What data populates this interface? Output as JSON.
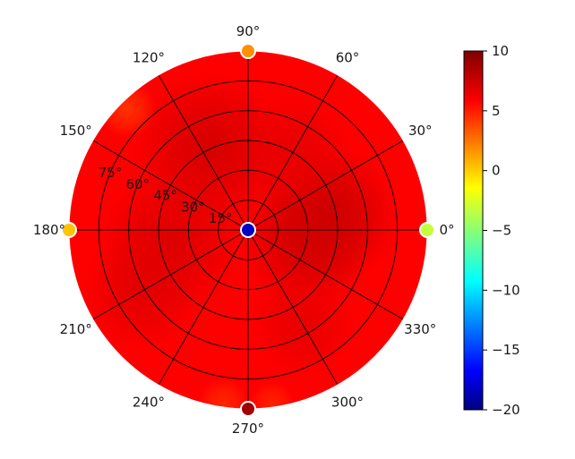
{
  "chart_data": {
    "type": "heatmap",
    "projection": "polar",
    "title": "",
    "theta_ticks": [
      {
        "deg": 0,
        "label": "0°"
      },
      {
        "deg": 30,
        "label": "30°"
      },
      {
        "deg": 60,
        "label": "60°"
      },
      {
        "deg": 90,
        "label": "90°"
      },
      {
        "deg": 120,
        "label": "120°"
      },
      {
        "deg": 150,
        "label": "150°"
      },
      {
        "deg": 180,
        "label": "180°"
      },
      {
        "deg": 210,
        "label": "210°"
      },
      {
        "deg": 240,
        "label": "240°"
      },
      {
        "deg": 270,
        "label": "270°"
      },
      {
        "deg": 300,
        "label": "300°"
      },
      {
        "deg": 330,
        "label": "330°"
      }
    ],
    "radial_ticks": [
      {
        "value": 15,
        "label": "15°"
      },
      {
        "value": 30,
        "label": "30°"
      },
      {
        "value": 45,
        "label": "45°"
      },
      {
        "value": 60,
        "label": "60°"
      },
      {
        "value": 75,
        "label": "75°"
      }
    ],
    "radial_range": [
      0,
      90
    ],
    "radial_label_angle_deg": 157.5,
    "grid": true,
    "colormap": "jet",
    "color_range": [
      -20,
      10
    ],
    "colorbar_ticks": [
      {
        "value": 10,
        "label": "10"
      },
      {
        "value": 5,
        "label": "5"
      },
      {
        "value": 0,
        "label": "0"
      },
      {
        "value": -5,
        "label": "−5"
      },
      {
        "value": -10,
        "label": "−10"
      },
      {
        "value": -15,
        "label": "−15"
      },
      {
        "value": -20,
        "label": "−20"
      }
    ],
    "background_level": 6.3,
    "field_hotspots": [
      {
        "theta": 10,
        "r": 40,
        "value": 8.0,
        "spread": 22
      },
      {
        "theta": 345,
        "r": 30,
        "value": 7.6,
        "spread": 20
      },
      {
        "theta": 115,
        "r": 45,
        "value": 7.6,
        "spread": 24
      },
      {
        "theta": 190,
        "r": 40,
        "value": 7.4,
        "spread": 22
      },
      {
        "theta": 210,
        "r": 62,
        "value": 7.2,
        "spread": 18
      },
      {
        "theta": 300,
        "r": 55,
        "value": 7.0,
        "spread": 16
      },
      {
        "theta": 60,
        "r": 45,
        "value": 7.0,
        "spread": 18
      }
    ],
    "field_coolspots": [
      {
        "theta": 135,
        "r": 86,
        "value": 4.6,
        "spread": 9
      },
      {
        "theta": 262,
        "r": 88,
        "value": 5.0,
        "spread": 8
      },
      {
        "theta": 278,
        "r": 88,
        "value": 5.2,
        "spread": 7
      }
    ],
    "markers": [
      {
        "theta": 0,
        "r": 0,
        "value": -18
      },
      {
        "theta": 0,
        "r": 90,
        "value": -3
      },
      {
        "theta": 90,
        "r": 90,
        "value": 2
      },
      {
        "theta": 180,
        "r": 90,
        "value": 0.5
      },
      {
        "theta": 270,
        "r": 90,
        "value": 9
      }
    ]
  }
}
